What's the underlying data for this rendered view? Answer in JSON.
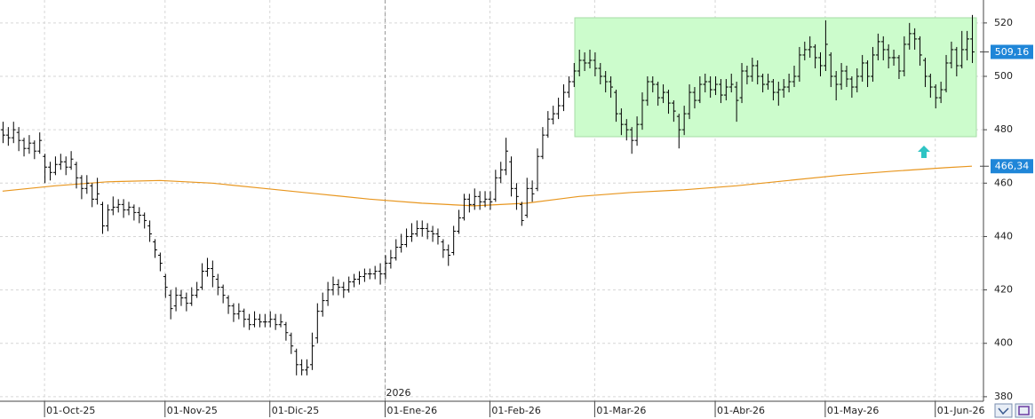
{
  "chart_data": {
    "type": "ohlc",
    "xlim": [
      -0.5,
      187.2
    ],
    "xticks": [
      {
        "value": 8,
        "label": "01-Oct-25"
      },
      {
        "value": 31,
        "label": "01-Nov-25"
      },
      {
        "value": 51,
        "label": "01-Dic-25"
      },
      {
        "value": 73,
        "label": "01-Ene-26"
      },
      {
        "value": 93,
        "label": "01-Feb-26"
      },
      {
        "value": 113,
        "label": "01-Mar-26"
      },
      {
        "value": 136,
        "label": "01-Abr-26"
      },
      {
        "value": 157,
        "label": "01-May-26"
      },
      {
        "value": 178,
        "label": "01-Jun-26"
      }
    ],
    "ylim": [
      378.3,
      528.6
    ],
    "yticks": [
      380,
      400,
      420,
      440,
      460,
      480,
      500,
      520
    ],
    "grid": true,
    "year_marker": {
      "x": 73,
      "label": "2026"
    },
    "price_labels": [
      {
        "value": 509.16,
        "label": "509,16",
        "color": "#1f86d8"
      },
      {
        "value": 466.34,
        "label": "466,34",
        "color": "#1f86d8"
      }
    ],
    "series": [
      {
        "type": "ohlc",
        "color": "#000000",
        "ohlc": [
          [
            480,
            483,
            475,
            478
          ],
          [
            478,
            481,
            474,
            477
          ],
          [
            477,
            483,
            475,
            480
          ],
          [
            479,
            481,
            472,
            476
          ],
          [
            476,
            477,
            470,
            473
          ],
          [
            473,
            478,
            471,
            475
          ],
          [
            475,
            476,
            469,
            472
          ],
          [
            472,
            479,
            471,
            476
          ],
          [
            470,
            471,
            460,
            466
          ],
          [
            466,
            468,
            461,
            464
          ],
          [
            464,
            470,
            463,
            467
          ],
          [
            467,
            471,
            465,
            468
          ],
          [
            468,
            470,
            463,
            466
          ],
          [
            466,
            472,
            465,
            469
          ],
          [
            467,
            468,
            458,
            462
          ],
          [
            462,
            463,
            454,
            458
          ],
          [
            458,
            463,
            456,
            460
          ],
          [
            459,
            460,
            451,
            454
          ],
          [
            454,
            462,
            452,
            456
          ],
          [
            452,
            453,
            441,
            444
          ],
          [
            444,
            452,
            442,
            450
          ],
          [
            450,
            455,
            448,
            451
          ],
          [
            451,
            454,
            449,
            452
          ],
          [
            452,
            454,
            447,
            450
          ],
          [
            450,
            453,
            448,
            451
          ],
          [
            451,
            452,
            446,
            449
          ],
          [
            449,
            451,
            445,
            448
          ],
          [
            448,
            449,
            443,
            446
          ],
          [
            444,
            446,
            438,
            441
          ],
          [
            438,
            439,
            432,
            435
          ],
          [
            433,
            434,
            427,
            430
          ],
          [
            425,
            426,
            417,
            421
          ],
          [
            418,
            420,
            409,
            413
          ],
          [
            414,
            421,
            412,
            418
          ],
          [
            418,
            420,
            414,
            417
          ],
          [
            417,
            419,
            412,
            415
          ],
          [
            415,
            421,
            414,
            418
          ],
          [
            418,
            423,
            417,
            420
          ],
          [
            421,
            430,
            420,
            427
          ],
          [
            427,
            432,
            425,
            428
          ],
          [
            428,
            431,
            421,
            425
          ],
          [
            424,
            426,
            418,
            421
          ],
          [
            421,
            422,
            415,
            418
          ],
          [
            417,
            418,
            411,
            414
          ],
          [
            414,
            415,
            408,
            411
          ],
          [
            411,
            415,
            409,
            412
          ],
          [
            412,
            413,
            406,
            409
          ],
          [
            409,
            411,
            405,
            407
          ],
          [
            407,
            412,
            406,
            409
          ],
          [
            409,
            411,
            406,
            408
          ],
          [
            408,
            411,
            406,
            408
          ],
          [
            408,
            412,
            406,
            409
          ],
          [
            409,
            411,
            405,
            407
          ],
          [
            407,
            411,
            406,
            408
          ],
          [
            407,
            408,
            401,
            404
          ],
          [
            403,
            404,
            396,
            399
          ],
          [
            397,
            398,
            388,
            392
          ],
          [
            392,
            394,
            388,
            390
          ],
          [
            390,
            394,
            388,
            391
          ],
          [
            392,
            404,
            390,
            399
          ],
          [
            402,
            415,
            400,
            412
          ],
          [
            412,
            419,
            410,
            416
          ],
          [
            416,
            423,
            414,
            420
          ],
          [
            420,
            425,
            418,
            422
          ],
          [
            422,
            424,
            418,
            421
          ],
          [
            421,
            423,
            417,
            420
          ],
          [
            420,
            425,
            419,
            423
          ],
          [
            423,
            426,
            421,
            424
          ],
          [
            424,
            427,
            422,
            425
          ],
          [
            425,
            428,
            423,
            426
          ],
          [
            426,
            428,
            424,
            426
          ],
          [
            426,
            429,
            424,
            427
          ],
          [
            427,
            430,
            422,
            426
          ],
          [
            426,
            433,
            424,
            430
          ],
          [
            430,
            435,
            428,
            432
          ],
          [
            432,
            439,
            431,
            436
          ],
          [
            436,
            441,
            434,
            437
          ],
          [
            437,
            443,
            436,
            440
          ],
          [
            440,
            445,
            438,
            441
          ],
          [
            441,
            446,
            440,
            443
          ],
          [
            443,
            446,
            440,
            443
          ],
          [
            443,
            445,
            439,
            442
          ],
          [
            442,
            444,
            438,
            441
          ],
          [
            441,
            443,
            437,
            440
          ],
          [
            438,
            439,
            432,
            435
          ],
          [
            435,
            437,
            429,
            433
          ],
          [
            434,
            444,
            433,
            442
          ],
          [
            442,
            450,
            441,
            447
          ],
          [
            447,
            456,
            446,
            454
          ],
          [
            454,
            456,
            449,
            452
          ],
          [
            452,
            458,
            450,
            455
          ],
          [
            455,
            457,
            450,
            453
          ],
          [
            453,
            457,
            451,
            454
          ],
          [
            454,
            457,
            450,
            453
          ],
          [
            454,
            465,
            453,
            462
          ],
          [
            462,
            468,
            460,
            465
          ],
          [
            465,
            477,
            463,
            472
          ],
          [
            468,
            470,
            455,
            458
          ],
          [
            458,
            460,
            450,
            455
          ],
          [
            452,
            453,
            444,
            446
          ],
          [
            448,
            462,
            447,
            458
          ],
          [
            458,
            461,
            453,
            456
          ],
          [
            458,
            473,
            457,
            470
          ],
          [
            470,
            481,
            469,
            478
          ],
          [
            478,
            487,
            477,
            484
          ],
          [
            484,
            489,
            482,
            486
          ],
          [
            486,
            492,
            484,
            489
          ],
          [
            489,
            497,
            487,
            494
          ],
          [
            494,
            500,
            492,
            498
          ],
          [
            498,
            505,
            496,
            502
          ],
          [
            502,
            510,
            500,
            506
          ],
          [
            506,
            509,
            502,
            505
          ],
          [
            505,
            510,
            503,
            506
          ],
          [
            506,
            509,
            500,
            503
          ],
          [
            503,
            505,
            497,
            500
          ],
          [
            500,
            502,
            494,
            498
          ],
          [
            498,
            500,
            492,
            496
          ],
          [
            494,
            495,
            483,
            486
          ],
          [
            486,
            488,
            478,
            482
          ],
          [
            482,
            484,
            476,
            480
          ],
          [
            480,
            481,
            471,
            476
          ],
          [
            476,
            485,
            474,
            482
          ],
          [
            482,
            494,
            480,
            491
          ],
          [
            491,
            500,
            489,
            498
          ],
          [
            498,
            500,
            494,
            497
          ],
          [
            497,
            498,
            489,
            492
          ],
          [
            492,
            497,
            490,
            494
          ],
          [
            494,
            495,
            486,
            490
          ],
          [
            490,
            491,
            483,
            487
          ],
          [
            485,
            486,
            473,
            480
          ],
          [
            480,
            489,
            478,
            486
          ],
          [
            486,
            497,
            484,
            494
          ],
          [
            494,
            496,
            488,
            491
          ],
          [
            491,
            500,
            490,
            497
          ],
          [
            497,
            501,
            494,
            498
          ],
          [
            498,
            500,
            492,
            495
          ],
          [
            495,
            500,
            493,
            497
          ],
          [
            497,
            499,
            490,
            493
          ],
          [
            493,
            499,
            491,
            496
          ],
          [
            496,
            501,
            494,
            497
          ],
          [
            496,
            498,
            483,
            491
          ],
          [
            492,
            505,
            490,
            502
          ],
          [
            502,
            504,
            497,
            500
          ],
          [
            500,
            507,
            498,
            504
          ],
          [
            504,
            506,
            497,
            500
          ],
          [
            500,
            501,
            494,
            497
          ],
          [
            497,
            501,
            495,
            498
          ],
          [
            498,
            499,
            491,
            494
          ],
          [
            494,
            498,
            489,
            495
          ],
          [
            495,
            499,
            492,
            496
          ],
          [
            496,
            501,
            494,
            498
          ],
          [
            498,
            504,
            496,
            500
          ],
          [
            500,
            511,
            498,
            508
          ],
          [
            508,
            513,
            506,
            510
          ],
          [
            510,
            515,
            507,
            511
          ],
          [
            511,
            512,
            503,
            507
          ],
          [
            507,
            509,
            500,
            504
          ],
          [
            504,
            521,
            502,
            512
          ],
          [
            508,
            509,
            496,
            500
          ],
          [
            500,
            502,
            491,
            497
          ],
          [
            497,
            505,
            495,
            502
          ],
          [
            502,
            504,
            496,
            499
          ],
          [
            499,
            500,
            492,
            496
          ],
          [
            496,
            503,
            494,
            500
          ],
          [
            500,
            508,
            498,
            505
          ],
          [
            505,
            506,
            496,
            500
          ],
          [
            500,
            511,
            498,
            508
          ],
          [
            508,
            516,
            506,
            513
          ],
          [
            513,
            515,
            506,
            510
          ],
          [
            510,
            512,
            503,
            507
          ],
          [
            507,
            510,
            504,
            507
          ],
          [
            507,
            508,
            499,
            502
          ],
          [
            502,
            515,
            500,
            512
          ],
          [
            512,
            520,
            510,
            516
          ],
          [
            516,
            518,
            510,
            514
          ],
          [
            514,
            515,
            504,
            508
          ],
          [
            506,
            507,
            496,
            500
          ],
          [
            500,
            501,
            492,
            496
          ],
          [
            496,
            497,
            488,
            492
          ],
          [
            492,
            498,
            490,
            495
          ],
          [
            495,
            508,
            494,
            505
          ],
          [
            505,
            513,
            503,
            510
          ],
          [
            510,
            511,
            500,
            504
          ],
          [
            504,
            517,
            503,
            510
          ],
          [
            510,
            517,
            506,
            514
          ],
          [
            514,
            523,
            505,
            509.16
          ]
        ]
      },
      {
        "type": "line",
        "color": "#e8961e",
        "x": [
          0,
          10,
          20,
          30,
          40,
          50,
          60,
          70,
          80,
          90,
          100,
          110,
          120,
          130,
          140,
          150,
          160,
          170,
          180,
          185
        ],
        "values": [
          457,
          459,
          460.5,
          461,
          460,
          458,
          456,
          454,
          452.5,
          451.5,
          452.5,
          455,
          456.5,
          457.5,
          459,
          461,
          463,
          464.5,
          465.8,
          466.34
        ]
      }
    ]
  }
}
